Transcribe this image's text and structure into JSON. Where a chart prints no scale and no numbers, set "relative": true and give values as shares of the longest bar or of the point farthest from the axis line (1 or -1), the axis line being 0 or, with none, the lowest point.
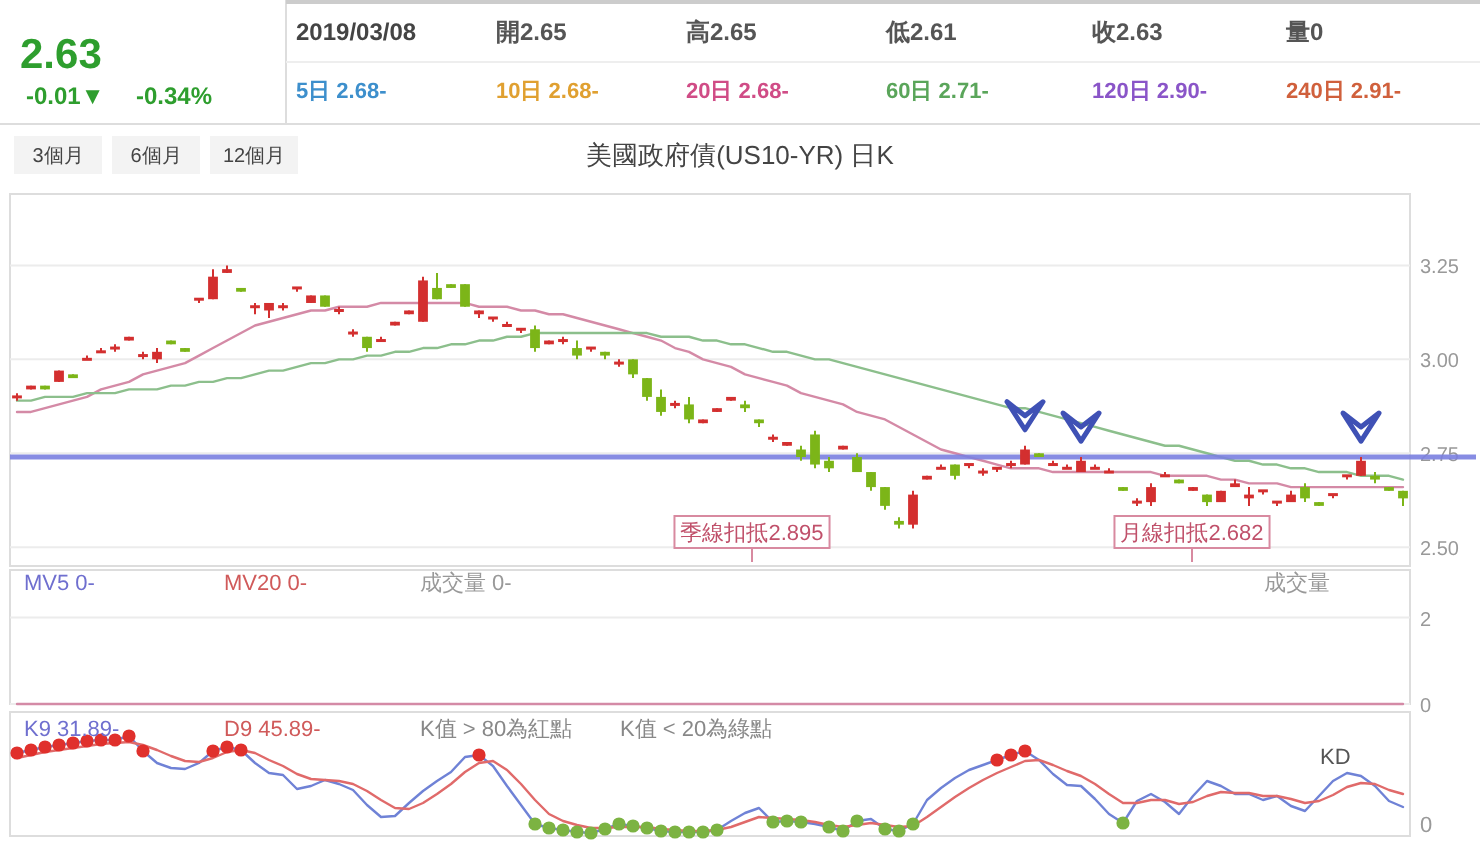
{
  "chart_data": [
    {
      "type": "other",
      "annotations": [
        "2.63",
        "-0.01▼",
        "-0.34%",
        "2019/03/08",
        "開2.65",
        "高2.65",
        "低2.61",
        "收2.63",
        "量0",
        "5日 2.68-",
        "10日 2.68-",
        "20日 2.68-",
        "60日 2.71-",
        "120日 2.90-",
        "240日 2.91-",
        "3個月",
        "6個月",
        "12個月"
      ]
    },
    {
      "type": "candlestick",
      "title": "美國政府債(US10-YR) 日K",
      "categories": [
        null,
        null,
        null,
        null,
        null,
        null,
        null,
        null,
        null,
        null,
        null,
        null,
        null,
        null,
        null,
        null,
        null,
        null,
        null,
        null,
        null,
        null,
        null,
        null,
        null,
        null,
        null,
        null,
        null,
        null,
        null,
        null,
        null,
        null,
        null,
        null,
        null,
        null,
        null,
        null,
        null,
        null,
        null,
        null,
        null,
        null,
        null,
        null,
        null,
        null,
        null,
        null,
        null,
        null,
        null,
        null,
        null,
        null,
        null,
        null,
        null,
        null,
        null,
        null,
        null,
        null,
        null,
        null,
        null,
        null,
        null,
        null,
        null,
        null,
        null,
        null,
        null,
        null,
        null,
        null,
        null,
        null,
        null,
        null,
        null,
        null,
        null,
        null,
        null,
        null,
        null,
        null,
        null,
        null,
        null,
        null,
        null,
        null,
        null,
        null
      ],
      "ohlc": [
        [
          2.9,
          2.91,
          2.89,
          2.9
        ],
        [
          2.92,
          2.93,
          2.92,
          2.93
        ],
        [
          2.93,
          2.93,
          2.92,
          2.92
        ],
        [
          2.94,
          2.97,
          2.94,
          2.97
        ],
        [
          2.96,
          2.96,
          2.95,
          2.95
        ],
        [
          3.0,
          3.01,
          3.0,
          3.0
        ],
        [
          3.02,
          3.03,
          3.02,
          3.02
        ],
        [
          3.03,
          3.04,
          3.02,
          3.03
        ],
        [
          3.05,
          3.06,
          3.05,
          3.06
        ],
        [
          3.01,
          3.02,
          3.0,
          3.01
        ],
        [
          3.0,
          3.03,
          2.99,
          3.02
        ],
        [
          3.05,
          3.05,
          3.04,
          3.04
        ],
        [
          3.03,
          3.03,
          3.02,
          3.02
        ],
        [
          3.16,
          3.16,
          3.15,
          3.16
        ],
        [
          3.16,
          3.24,
          3.16,
          3.22
        ],
        [
          3.23,
          3.25,
          3.23,
          3.24
        ],
        [
          3.19,
          3.19,
          3.18,
          3.18
        ],
        [
          3.14,
          3.15,
          3.12,
          3.14
        ],
        [
          3.13,
          3.15,
          3.11,
          3.15
        ],
        [
          3.14,
          3.15,
          3.13,
          3.14
        ],
        [
          3.19,
          3.19,
          3.18,
          3.19
        ],
        [
          3.15,
          3.17,
          3.15,
          3.17
        ],
        [
          3.17,
          3.17,
          3.14,
          3.14
        ],
        [
          3.13,
          3.14,
          3.12,
          3.13
        ],
        [
          3.07,
          3.08,
          3.06,
          3.07
        ],
        [
          3.06,
          3.06,
          3.02,
          3.03
        ],
        [
          3.05,
          3.06,
          3.05,
          3.05
        ],
        [
          3.09,
          3.1,
          3.09,
          3.1
        ],
        [
          3.12,
          3.13,
          3.12,
          3.13
        ],
        [
          3.1,
          3.22,
          3.1,
          3.21
        ],
        [
          3.19,
          3.23,
          3.16,
          3.16
        ],
        [
          3.2,
          3.2,
          3.19,
          3.19
        ],
        [
          3.2,
          3.2,
          3.14,
          3.14
        ],
        [
          3.12,
          3.13,
          3.11,
          3.13
        ],
        [
          3.11,
          3.11,
          3.1,
          3.11
        ],
        [
          3.09,
          3.1,
          3.09,
          3.09
        ],
        [
          3.08,
          3.08,
          3.07,
          3.08
        ],
        [
          3.08,
          3.09,
          3.02,
          3.03
        ],
        [
          3.04,
          3.05,
          3.04,
          3.05
        ],
        [
          3.05,
          3.06,
          3.04,
          3.05
        ],
        [
          3.03,
          3.05,
          3.0,
          3.01
        ],
        [
          3.03,
          3.03,
          3.02,
          3.03
        ],
        [
          3.02,
          3.02,
          3.0,
          3.01
        ],
        [
          2.99,
          3.0,
          2.98,
          2.99
        ],
        [
          3.0,
          3.0,
          2.95,
          2.96
        ],
        [
          2.95,
          2.95,
          2.89,
          2.9
        ],
        [
          2.9,
          2.92,
          2.85,
          2.86
        ],
        [
          2.88,
          2.89,
          2.87,
          2.88
        ],
        [
          2.88,
          2.9,
          2.83,
          2.84
        ],
        [
          2.83,
          2.84,
          2.83,
          2.84
        ],
        [
          2.86,
          2.87,
          2.86,
          2.87
        ],
        [
          2.89,
          2.9,
          2.89,
          2.9
        ],
        [
          2.88,
          2.89,
          2.86,
          2.87
        ],
        [
          2.84,
          2.84,
          2.82,
          2.83
        ],
        [
          2.79,
          2.8,
          2.78,
          2.79
        ],
        [
          2.77,
          2.78,
          2.77,
          2.78
        ],
        [
          2.76,
          2.77,
          2.73,
          2.74
        ],
        [
          2.8,
          2.81,
          2.71,
          2.72
        ],
        [
          2.73,
          2.74,
          2.7,
          2.71
        ],
        [
          2.76,
          2.77,
          2.76,
          2.77
        ],
        [
          2.74,
          2.75,
          2.7,
          2.7
        ],
        [
          2.7,
          2.7,
          2.65,
          2.66
        ],
        [
          2.66,
          2.66,
          2.6,
          2.61
        ],
        [
          2.57,
          2.58,
          2.55,
          2.56
        ],
        [
          2.56,
          2.65,
          2.55,
          2.64
        ],
        [
          2.68,
          2.69,
          2.68,
          2.69
        ],
        [
          2.71,
          2.72,
          2.71,
          2.71
        ],
        [
          2.72,
          2.72,
          2.68,
          2.69
        ],
        [
          2.72,
          2.72,
          2.71,
          2.72
        ],
        [
          2.7,
          2.71,
          2.69,
          2.7
        ],
        [
          2.71,
          2.71,
          2.7,
          2.71
        ],
        [
          2.72,
          2.73,
          2.71,
          2.72
        ],
        [
          2.72,
          2.77,
          2.72,
          2.76
        ],
        [
          2.75,
          2.75,
          2.74,
          2.74
        ],
        [
          2.72,
          2.73,
          2.72,
          2.72
        ],
        [
          2.71,
          2.72,
          2.71,
          2.71
        ],
        [
          2.7,
          2.74,
          2.7,
          2.73
        ],
        [
          2.71,
          2.72,
          2.71,
          2.71
        ],
        [
          2.7,
          2.71,
          2.7,
          2.7
        ],
        [
          2.66,
          2.66,
          2.65,
          2.65
        ],
        [
          2.62,
          2.63,
          2.61,
          2.62
        ],
        [
          2.62,
          2.67,
          2.61,
          2.66
        ],
        [
          2.69,
          2.7,
          2.69,
          2.69
        ],
        [
          2.68,
          2.68,
          2.67,
          2.67
        ],
        [
          2.65,
          2.66,
          2.65,
          2.66
        ],
        [
          2.64,
          2.64,
          2.61,
          2.62
        ],
        [
          2.62,
          2.65,
          2.62,
          2.65
        ],
        [
          2.66,
          2.68,
          2.66,
          2.67
        ],
        [
          2.63,
          2.66,
          2.61,
          2.64
        ],
        [
          2.65,
          2.65,
          2.64,
          2.65
        ],
        [
          2.62,
          2.62,
          2.61,
          2.62
        ],
        [
          2.62,
          2.65,
          2.62,
          2.64
        ],
        [
          2.66,
          2.67,
          2.62,
          2.63
        ],
        [
          2.62,
          2.62,
          2.61,
          2.61
        ],
        [
          2.64,
          2.64,
          2.63,
          2.64
        ],
        [
          2.69,
          2.69,
          2.68,
          2.69
        ],
        [
          2.69,
          2.74,
          2.69,
          2.73
        ],
        [
          2.69,
          2.7,
          2.67,
          2.68
        ],
        [
          2.66,
          2.66,
          2.65,
          2.65
        ],
        [
          2.65,
          2.65,
          2.61,
          2.63
        ]
      ],
      "series": [
        {
          "type": "line",
          "color": "#d48aa6",
          "values": [
            2.86,
            2.86,
            2.87,
            2.88,
            2.89,
            2.9,
            2.92,
            2.93,
            2.94,
            2.96,
            2.97,
            2.98,
            2.99,
            3.01,
            3.03,
            3.05,
            3.07,
            3.09,
            3.1,
            3.11,
            3.12,
            3.13,
            3.13,
            3.14,
            3.14,
            3.14,
            3.15,
            3.15,
            3.15,
            3.15,
            3.15,
            3.15,
            3.15,
            3.14,
            3.14,
            3.14,
            3.13,
            3.13,
            3.12,
            3.12,
            3.11,
            3.1,
            3.09,
            3.08,
            3.07,
            3.06,
            3.05,
            3.03,
            3.02,
            3.0,
            2.99,
            2.98,
            2.96,
            2.95,
            2.94,
            2.93,
            2.91,
            2.9,
            2.89,
            2.88,
            2.86,
            2.85,
            2.84,
            2.82,
            2.8,
            2.78,
            2.76,
            2.75,
            2.74,
            2.73,
            2.72,
            2.71,
            2.71,
            2.71,
            2.7,
            2.7,
            2.7,
            2.7,
            2.7,
            2.7,
            2.7,
            2.7,
            2.69,
            2.69,
            2.69,
            2.69,
            2.68,
            2.68,
            2.67,
            2.67,
            2.67,
            2.66,
            2.66,
            2.66,
            2.66,
            2.66,
            2.66,
            2.66,
            2.66,
            2.66
          ]
        },
        {
          "type": "line",
          "color": "#8cbf8c",
          "values": [
            2.89,
            2.89,
            2.9,
            2.9,
            2.9,
            2.91,
            2.91,
            2.91,
            2.92,
            2.92,
            2.92,
            2.93,
            2.93,
            2.94,
            2.94,
            2.95,
            2.95,
            2.96,
            2.97,
            2.97,
            2.98,
            2.99,
            2.99,
            3.0,
            3.0,
            3.01,
            3.01,
            3.02,
            3.02,
            3.03,
            3.03,
            3.04,
            3.04,
            3.05,
            3.05,
            3.06,
            3.06,
            3.07,
            3.07,
            3.07,
            3.07,
            3.07,
            3.07,
            3.07,
            3.07,
            3.07,
            3.06,
            3.06,
            3.06,
            3.05,
            3.05,
            3.04,
            3.04,
            3.03,
            3.02,
            3.02,
            3.01,
            3.0,
            3.0,
            2.99,
            2.98,
            2.97,
            2.96,
            2.95,
            2.94,
            2.93,
            2.92,
            2.91,
            2.9,
            2.89,
            2.88,
            2.87,
            2.87,
            2.86,
            2.85,
            2.84,
            2.83,
            2.82,
            2.81,
            2.8,
            2.79,
            2.78,
            2.77,
            2.77,
            2.76,
            2.75,
            2.74,
            2.73,
            2.73,
            2.72,
            2.72,
            2.71,
            2.71,
            2.7,
            2.7,
            2.7,
            2.69,
            2.69,
            2.69,
            2.68
          ]
        }
      ],
      "ylim": [
        2.45,
        3.44
      ],
      "yticks": [
        {
          "value": 2.5,
          "label": "2.50"
        },
        {
          "value": 2.75,
          "label": "2.75"
        },
        {
          "value": 3.0,
          "label": "3.00"
        },
        {
          "value": 3.25,
          "label": "3.25"
        }
      ],
      "grid": "y",
      "ref_lines": [
        {
          "axis": "y",
          "value": 2.74,
          "color": "#7b80e0"
        }
      ],
      "annotations": [
        "季線扣抵2.895",
        "月線扣抵2.682"
      ]
    },
    {
      "type": "line",
      "categories": [
        null,
        null,
        null,
        null,
        null,
        null,
        null,
        null,
        null,
        null,
        null,
        null,
        null,
        null,
        null,
        null,
        null,
        null,
        null,
        null,
        null,
        null,
        null,
        null,
        null,
        null,
        null,
        null,
        null,
        null,
        null,
        null,
        null,
        null,
        null,
        null,
        null,
        null,
        null,
        null,
        null,
        null,
        null,
        null,
        null,
        null,
        null,
        null,
        null,
        null,
        null,
        null,
        null,
        null,
        null,
        null,
        null,
        null,
        null,
        null,
        null,
        null,
        null,
        null,
        null,
        null,
        null,
        null,
        null,
        null,
        null,
        null,
        null,
        null,
        null,
        null,
        null,
        null,
        null,
        null,
        null,
        null,
        null,
        null,
        null,
        null,
        null,
        null,
        null,
        null,
        null,
        null,
        null,
        null,
        null,
        null,
        null,
        null,
        null,
        null
      ],
      "series": [
        {
          "color": "#d48aa6",
          "values": [
            0,
            0,
            0,
            0,
            0,
            0,
            0,
            0,
            0,
            0,
            0,
            0,
            0,
            0,
            0,
            0,
            0,
            0,
            0,
            0,
            0,
            0,
            0,
            0,
            0,
            0,
            0,
            0,
            0,
            0,
            0,
            0,
            0,
            0,
            0,
            0,
            0,
            0,
            0,
            0,
            0,
            0,
            0,
            0,
            0,
            0,
            0,
            0,
            0,
            0,
            0,
            0,
            0,
            0,
            0,
            0,
            0,
            0,
            0,
            0,
            0,
            0,
            0,
            0,
            0,
            0,
            0,
            0,
            0,
            0,
            0,
            0,
            0,
            0,
            0,
            0,
            0,
            0,
            0,
            0,
            0,
            0,
            0,
            0,
            0,
            0,
            0,
            0,
            0,
            0,
            0,
            0,
            0,
            0,
            0,
            0,
            0,
            0,
            0,
            0
          ]
        }
      ],
      "ylim": [
        0,
        3.1
      ],
      "yticks": [
        0,
        2
      ],
      "grid": "y",
      "annotations": [
        "MV5 0-",
        "MV20 0-",
        "成交量 0-",
        "成交量"
      ]
    },
    {
      "type": "line",
      "relative": true,
      "categories": [
        null,
        null,
        null,
        null,
        null,
        null,
        null,
        null,
        null,
        null,
        null,
        null,
        null,
        null,
        null,
        null,
        null,
        null,
        null,
        null,
        null,
        null,
        null,
        null,
        null,
        null,
        null,
        null,
        null,
        null,
        null,
        null,
        null,
        null,
        null,
        null,
        null,
        null,
        null,
        null,
        null,
        null,
        null,
        null,
        null,
        null,
        null,
        null,
        null,
        null,
        null,
        null,
        null,
        null,
        null,
        null,
        null,
        null,
        null,
        null,
        null,
        null,
        null,
        null,
        null,
        null,
        null,
        null,
        null,
        null,
        null,
        null,
        null,
        null,
        null,
        null,
        null,
        null,
        null,
        null,
        null,
        null,
        null,
        null,
        null,
        null,
        null,
        null,
        null,
        null,
        null,
        null,
        null,
        null,
        null,
        null,
        null,
        null,
        null,
        null
      ],
      "series": [
        {
          "type": "line",
          "color": "#6f82d6",
          "values": [
            0.83,
            0.86,
            0.89,
            0.91,
            0.93,
            0.95,
            0.96,
            0.96,
            1.0,
            0.85,
            0.73,
            0.68,
            0.67,
            0.73,
            0.85,
            0.89,
            0.86,
            0.73,
            0.63,
            0.61,
            0.47,
            0.5,
            0.56,
            0.52,
            0.46,
            0.31,
            0.19,
            0.2,
            0.33,
            0.45,
            0.55,
            0.64,
            0.79,
            0.81,
            0.7,
            0.5,
            0.31,
            0.12,
            0.08,
            0.06,
            0.04,
            0.03,
            0.07,
            0.12,
            0.1,
            0.08,
            0.05,
            0.04,
            0.04,
            0.04,
            0.06,
            0.15,
            0.23,
            0.28,
            0.14,
            0.15,
            0.14,
            0.12,
            0.09,
            0.05,
            0.15,
            0.17,
            0.07,
            0.05,
            0.12,
            0.36,
            0.48,
            0.58,
            0.66,
            0.71,
            0.76,
            0.81,
            0.85,
            0.76,
            0.62,
            0.51,
            0.5,
            0.37,
            0.22,
            0.13,
            0.35,
            0.42,
            0.34,
            0.22,
            0.4,
            0.55,
            0.5,
            0.42,
            0.42,
            0.36,
            0.4,
            0.3,
            0.25,
            0.4,
            0.55,
            0.63,
            0.6,
            0.5,
            0.35,
            0.29
          ]
        },
        {
          "type": "line",
          "color": "#e06a6a",
          "values": [
            0.78,
            0.81,
            0.84,
            0.86,
            0.88,
            0.9,
            0.92,
            0.93,
            0.94,
            0.91,
            0.86,
            0.8,
            0.75,
            0.74,
            0.78,
            0.84,
            0.86,
            0.83,
            0.76,
            0.7,
            0.62,
            0.57,
            0.56,
            0.55,
            0.52,
            0.45,
            0.36,
            0.28,
            0.27,
            0.33,
            0.42,
            0.52,
            0.64,
            0.73,
            0.75,
            0.66,
            0.52,
            0.36,
            0.22,
            0.15,
            0.11,
            0.08,
            0.08,
            0.09,
            0.09,
            0.09,
            0.07,
            0.06,
            0.05,
            0.05,
            0.06,
            0.09,
            0.14,
            0.19,
            0.18,
            0.17,
            0.16,
            0.14,
            0.11,
            0.09,
            0.11,
            0.13,
            0.11,
            0.09,
            0.1,
            0.19,
            0.29,
            0.39,
            0.48,
            0.56,
            0.63,
            0.69,
            0.75,
            0.76,
            0.71,
            0.65,
            0.6,
            0.52,
            0.42,
            0.33,
            0.33,
            0.36,
            0.36,
            0.32,
            0.34,
            0.4,
            0.44,
            0.43,
            0.43,
            0.4,
            0.4,
            0.37,
            0.33,
            0.35,
            0.41,
            0.49,
            0.53,
            0.52,
            0.46,
            0.42
          ]
        },
        {
          "type": "scatter",
          "color": "#e0302c",
          "values": [
            0.83,
            0.86,
            0.89,
            0.91,
            0.93,
            0.95,
            0.96,
            0.96,
            1.0,
            0.85,
            null,
            null,
            null,
            null,
            0.85,
            0.89,
            0.86,
            null,
            null,
            null,
            null,
            null,
            null,
            null,
            null,
            null,
            null,
            null,
            null,
            null,
            null,
            null,
            null,
            0.81,
            null,
            null,
            null,
            null,
            null,
            null,
            null,
            null,
            null,
            null,
            null,
            null,
            null,
            null,
            null,
            null,
            null,
            null,
            null,
            null,
            null,
            null,
            null,
            null,
            null,
            null,
            null,
            null,
            null,
            null,
            null,
            null,
            null,
            null,
            null,
            null,
            0.76,
            0.81,
            0.85,
            null,
            null,
            null,
            null,
            null,
            null,
            null,
            null,
            null,
            null,
            null,
            null,
            null,
            null,
            null,
            null,
            null,
            null,
            null,
            null,
            null,
            null,
            null,
            null,
            null,
            null,
            null
          ]
        },
        {
          "type": "scatter",
          "color": "#7cb342",
          "values": [
            null,
            null,
            null,
            null,
            null,
            null,
            null,
            null,
            null,
            null,
            null,
            null,
            null,
            null,
            null,
            null,
            null,
            null,
            null,
            null,
            null,
            null,
            null,
            null,
            null,
            null,
            null,
            null,
            null,
            null,
            null,
            null,
            null,
            null,
            null,
            null,
            null,
            0.12,
            0.08,
            0.06,
            0.04,
            0.03,
            0.07,
            0.12,
            0.1,
            0.08,
            0.05,
            0.04,
            0.04,
            0.04,
            0.06,
            null,
            null,
            null,
            0.14,
            0.15,
            0.14,
            null,
            0.09,
            0.05,
            0.15,
            null,
            0.07,
            0.05,
            0.12,
            null,
            null,
            null,
            null,
            null,
            null,
            null,
            null,
            null,
            null,
            null,
            null,
            null,
            null,
            0.13,
            null,
            null,
            null,
            null,
            null,
            null,
            null,
            null,
            null,
            null,
            null,
            null,
            null,
            null,
            null,
            null,
            null,
            null,
            null,
            null
          ]
        }
      ],
      "annotations": [
        "K9 31.89-",
        "D9 45.89-",
        "K值 > 80為紅點",
        "K值 < 20為綠點",
        "KD",
        "0"
      ]
    }
  ]
}
